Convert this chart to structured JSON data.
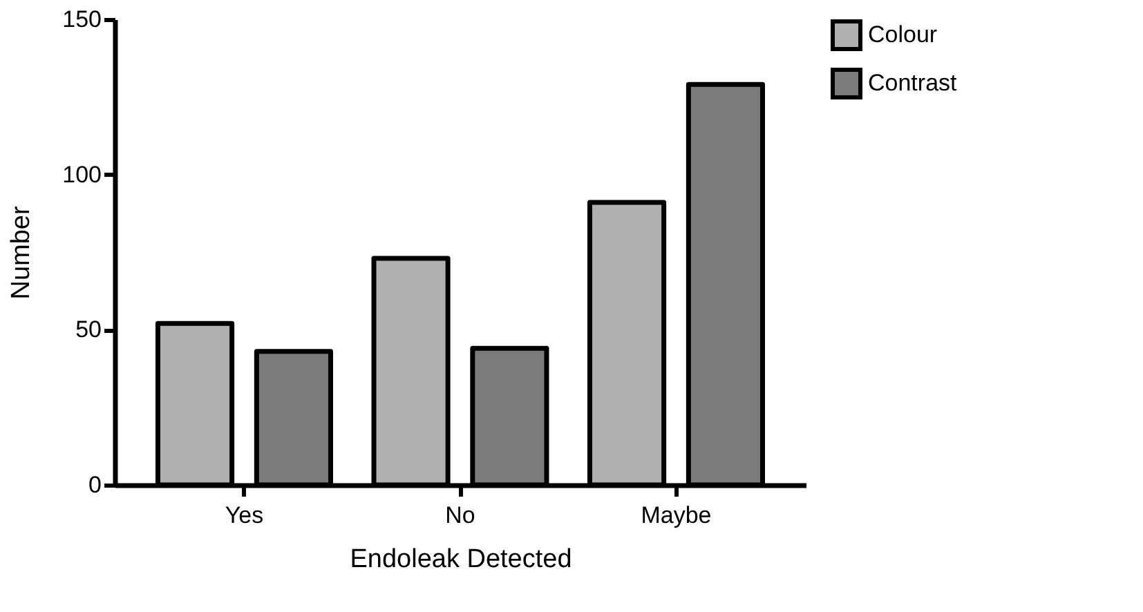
{
  "chart_data": {
    "type": "bar",
    "xlabel": "Endoleak Detected",
    "ylabel": "Number",
    "categories": [
      "Yes",
      "No",
      "Maybe"
    ],
    "series": [
      {
        "name": "Colour",
        "color": "#b0b0b0",
        "values": [
          52,
          73,
          91
        ]
      },
      {
        "name": "Contrast",
        "color": "#7a7a7a",
        "values": [
          43,
          44,
          129
        ]
      }
    ],
    "ylim": [
      0,
      150
    ],
    "yticks": [
      0,
      50,
      100,
      150
    ],
    "grid": false,
    "legend": "top right"
  }
}
